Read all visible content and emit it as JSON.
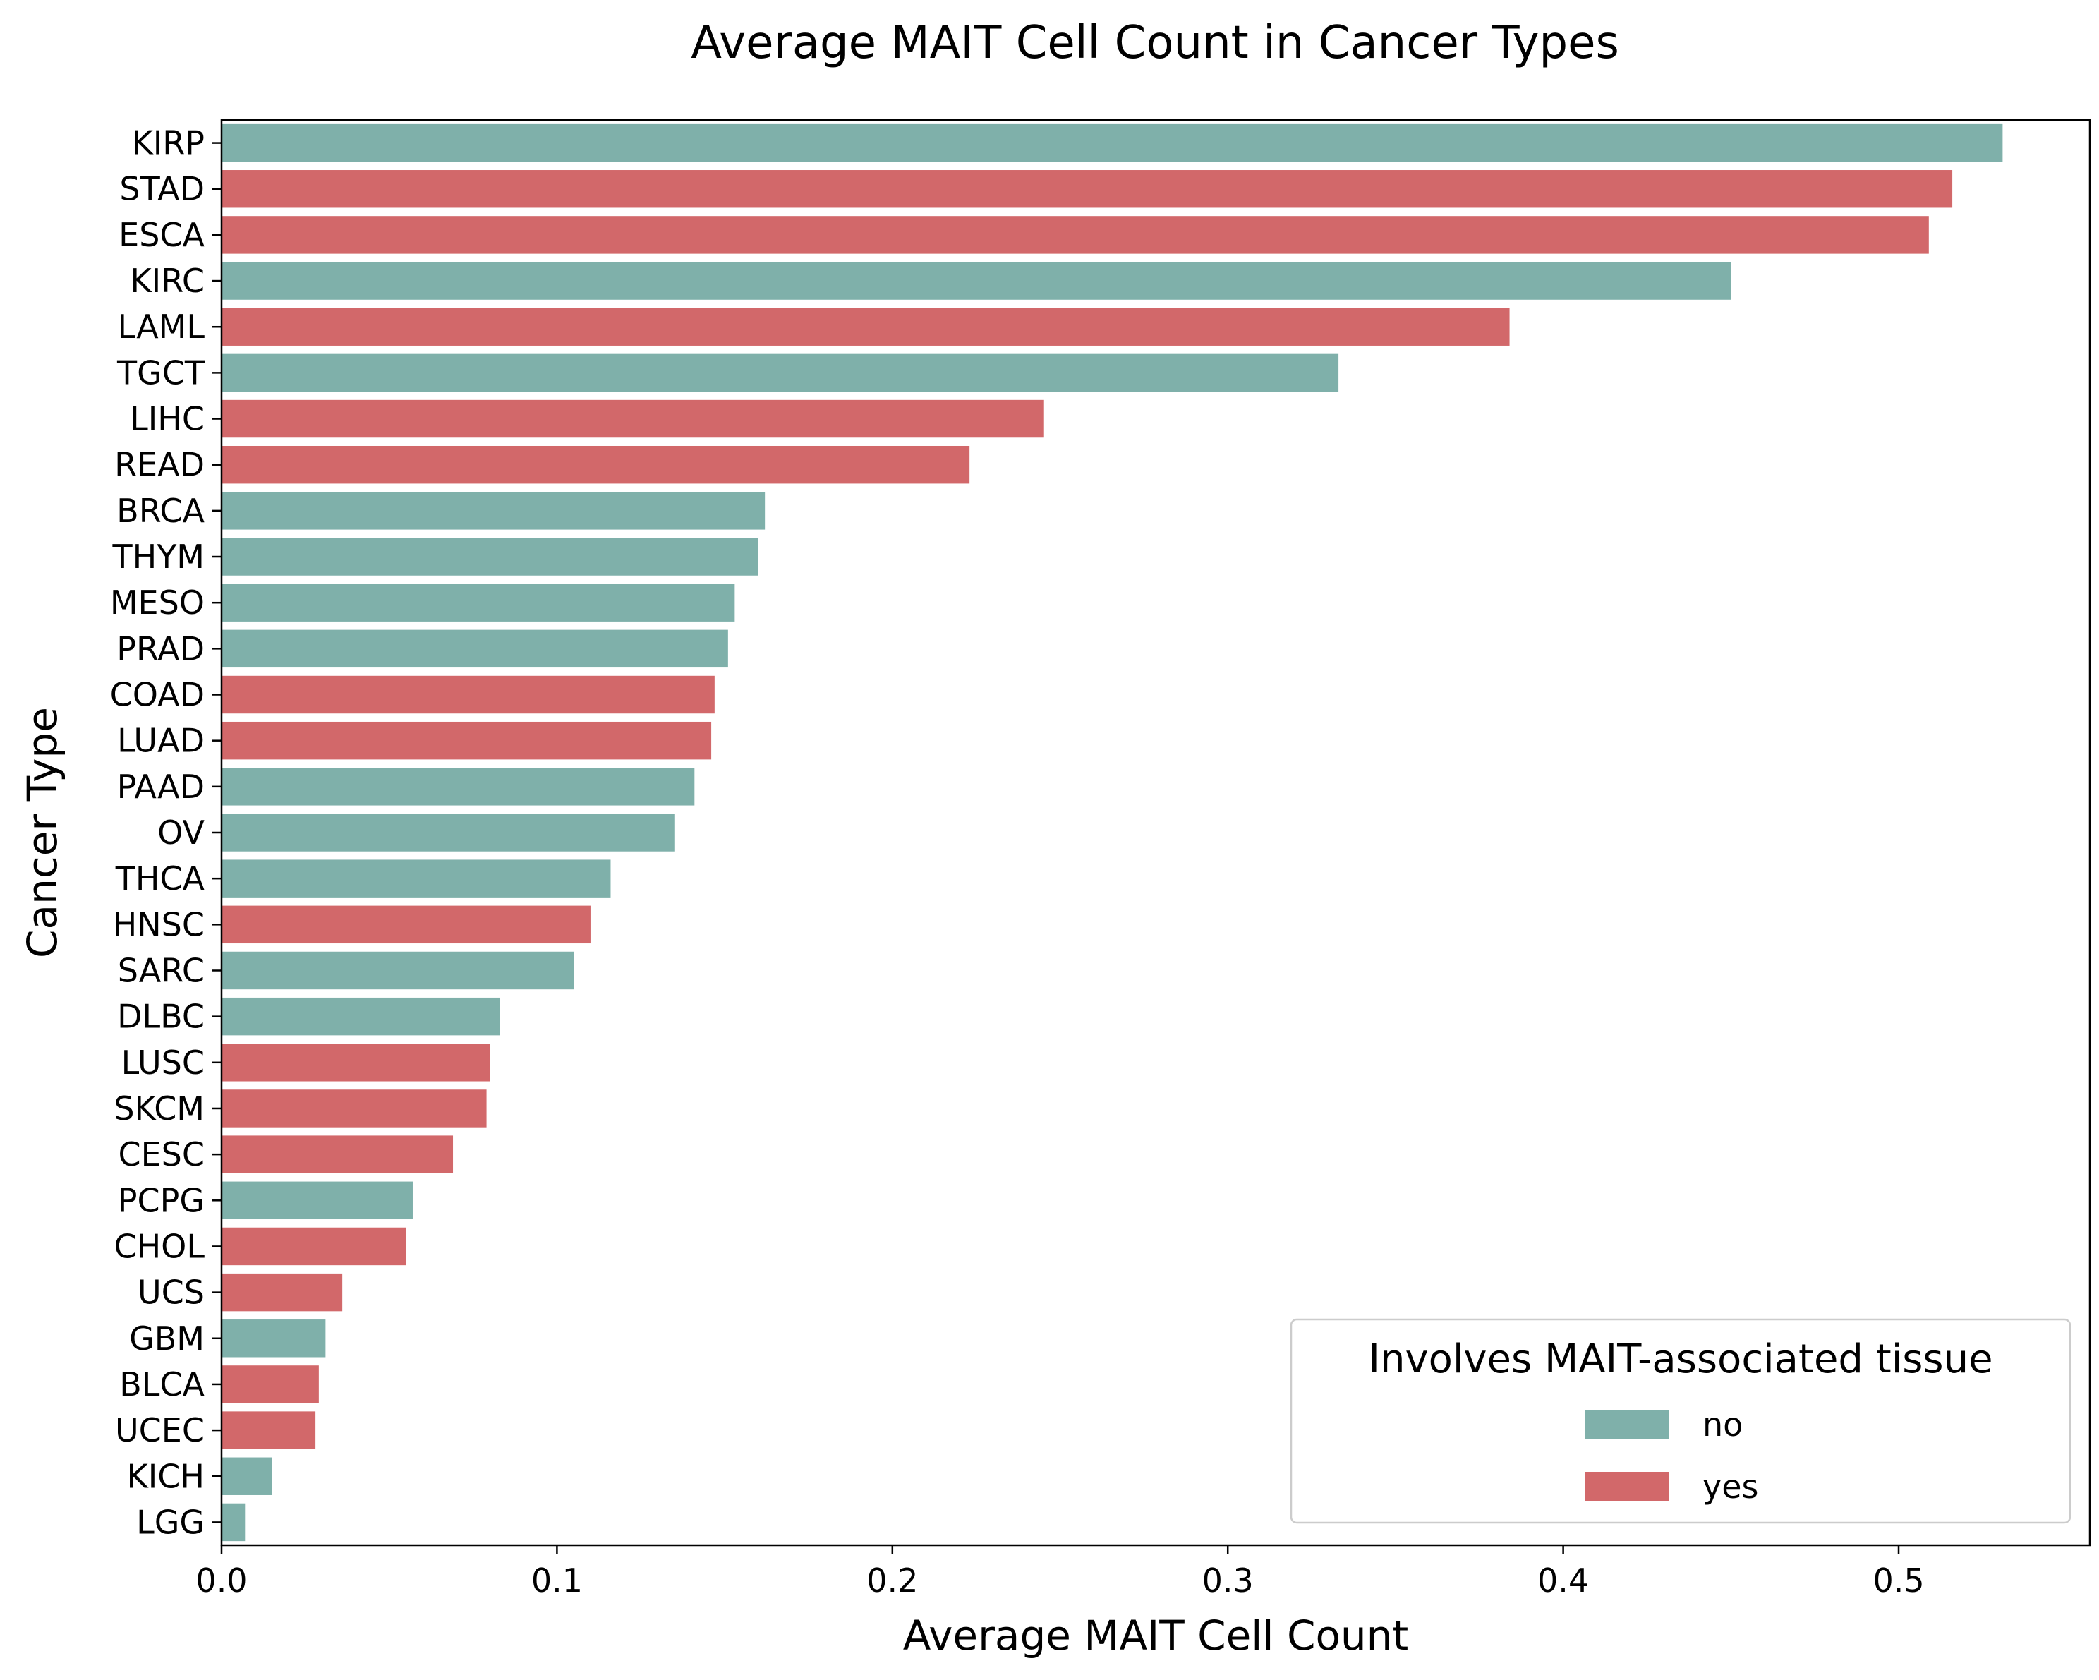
{
  "chart_data": {
    "type": "bar",
    "orientation": "horizontal",
    "title": "Average MAIT Cell Count in Cancer Types",
    "xlabel": "Average MAIT Cell Count",
    "ylabel": "Cancer Type",
    "xlim": [
      0,
      0.557
    ],
    "xticks": [
      0.0,
      0.1,
      0.2,
      0.3,
      0.4,
      0.5
    ],
    "xtick_labels": [
      "0.0",
      "0.1",
      "0.2",
      "0.3",
      "0.4",
      "0.5"
    ],
    "grid": false,
    "legend": {
      "title": "Involves MAIT-associated tissue",
      "placement": "lower-right",
      "entries": [
        {
          "label": "no",
          "color": "#7fb0aa"
        },
        {
          "label": "yes",
          "color": "#d2686a"
        }
      ]
    },
    "bars": [
      {
        "category": "KIRP",
        "value": 0.531,
        "group": "no"
      },
      {
        "category": "STAD",
        "value": 0.516,
        "group": "yes"
      },
      {
        "category": "ESCA",
        "value": 0.509,
        "group": "yes"
      },
      {
        "category": "KIRC",
        "value": 0.45,
        "group": "no"
      },
      {
        "category": "LAML",
        "value": 0.384,
        "group": "yes"
      },
      {
        "category": "TGCT",
        "value": 0.333,
        "group": "no"
      },
      {
        "category": "LIHC",
        "value": 0.245,
        "group": "yes"
      },
      {
        "category": "READ",
        "value": 0.223,
        "group": "yes"
      },
      {
        "category": "BRCA",
        "value": 0.162,
        "group": "no"
      },
      {
        "category": "THYM",
        "value": 0.16,
        "group": "no"
      },
      {
        "category": "MESO",
        "value": 0.153,
        "group": "no"
      },
      {
        "category": "PRAD",
        "value": 0.151,
        "group": "no"
      },
      {
        "category": "COAD",
        "value": 0.147,
        "group": "yes"
      },
      {
        "category": "LUAD",
        "value": 0.146,
        "group": "yes"
      },
      {
        "category": "PAAD",
        "value": 0.141,
        "group": "no"
      },
      {
        "category": "OV",
        "value": 0.135,
        "group": "no"
      },
      {
        "category": "THCA",
        "value": 0.116,
        "group": "no"
      },
      {
        "category": "HNSC",
        "value": 0.11,
        "group": "yes"
      },
      {
        "category": "SARC",
        "value": 0.105,
        "group": "no"
      },
      {
        "category": "DLBC",
        "value": 0.083,
        "group": "no"
      },
      {
        "category": "LUSC",
        "value": 0.08,
        "group": "yes"
      },
      {
        "category": "SKCM",
        "value": 0.079,
        "group": "yes"
      },
      {
        "category": "CESC",
        "value": 0.069,
        "group": "yes"
      },
      {
        "category": "PCPG",
        "value": 0.057,
        "group": "no"
      },
      {
        "category": "CHOL",
        "value": 0.055,
        "group": "yes"
      },
      {
        "category": "UCS",
        "value": 0.036,
        "group": "yes"
      },
      {
        "category": "GBM",
        "value": 0.031,
        "group": "no"
      },
      {
        "category": "BLCA",
        "value": 0.029,
        "group": "yes"
      },
      {
        "category": "UCEC",
        "value": 0.028,
        "group": "yes"
      },
      {
        "category": "KICH",
        "value": 0.015,
        "group": "no"
      },
      {
        "category": "LGG",
        "value": 0.007,
        "group": "no"
      }
    ]
  }
}
